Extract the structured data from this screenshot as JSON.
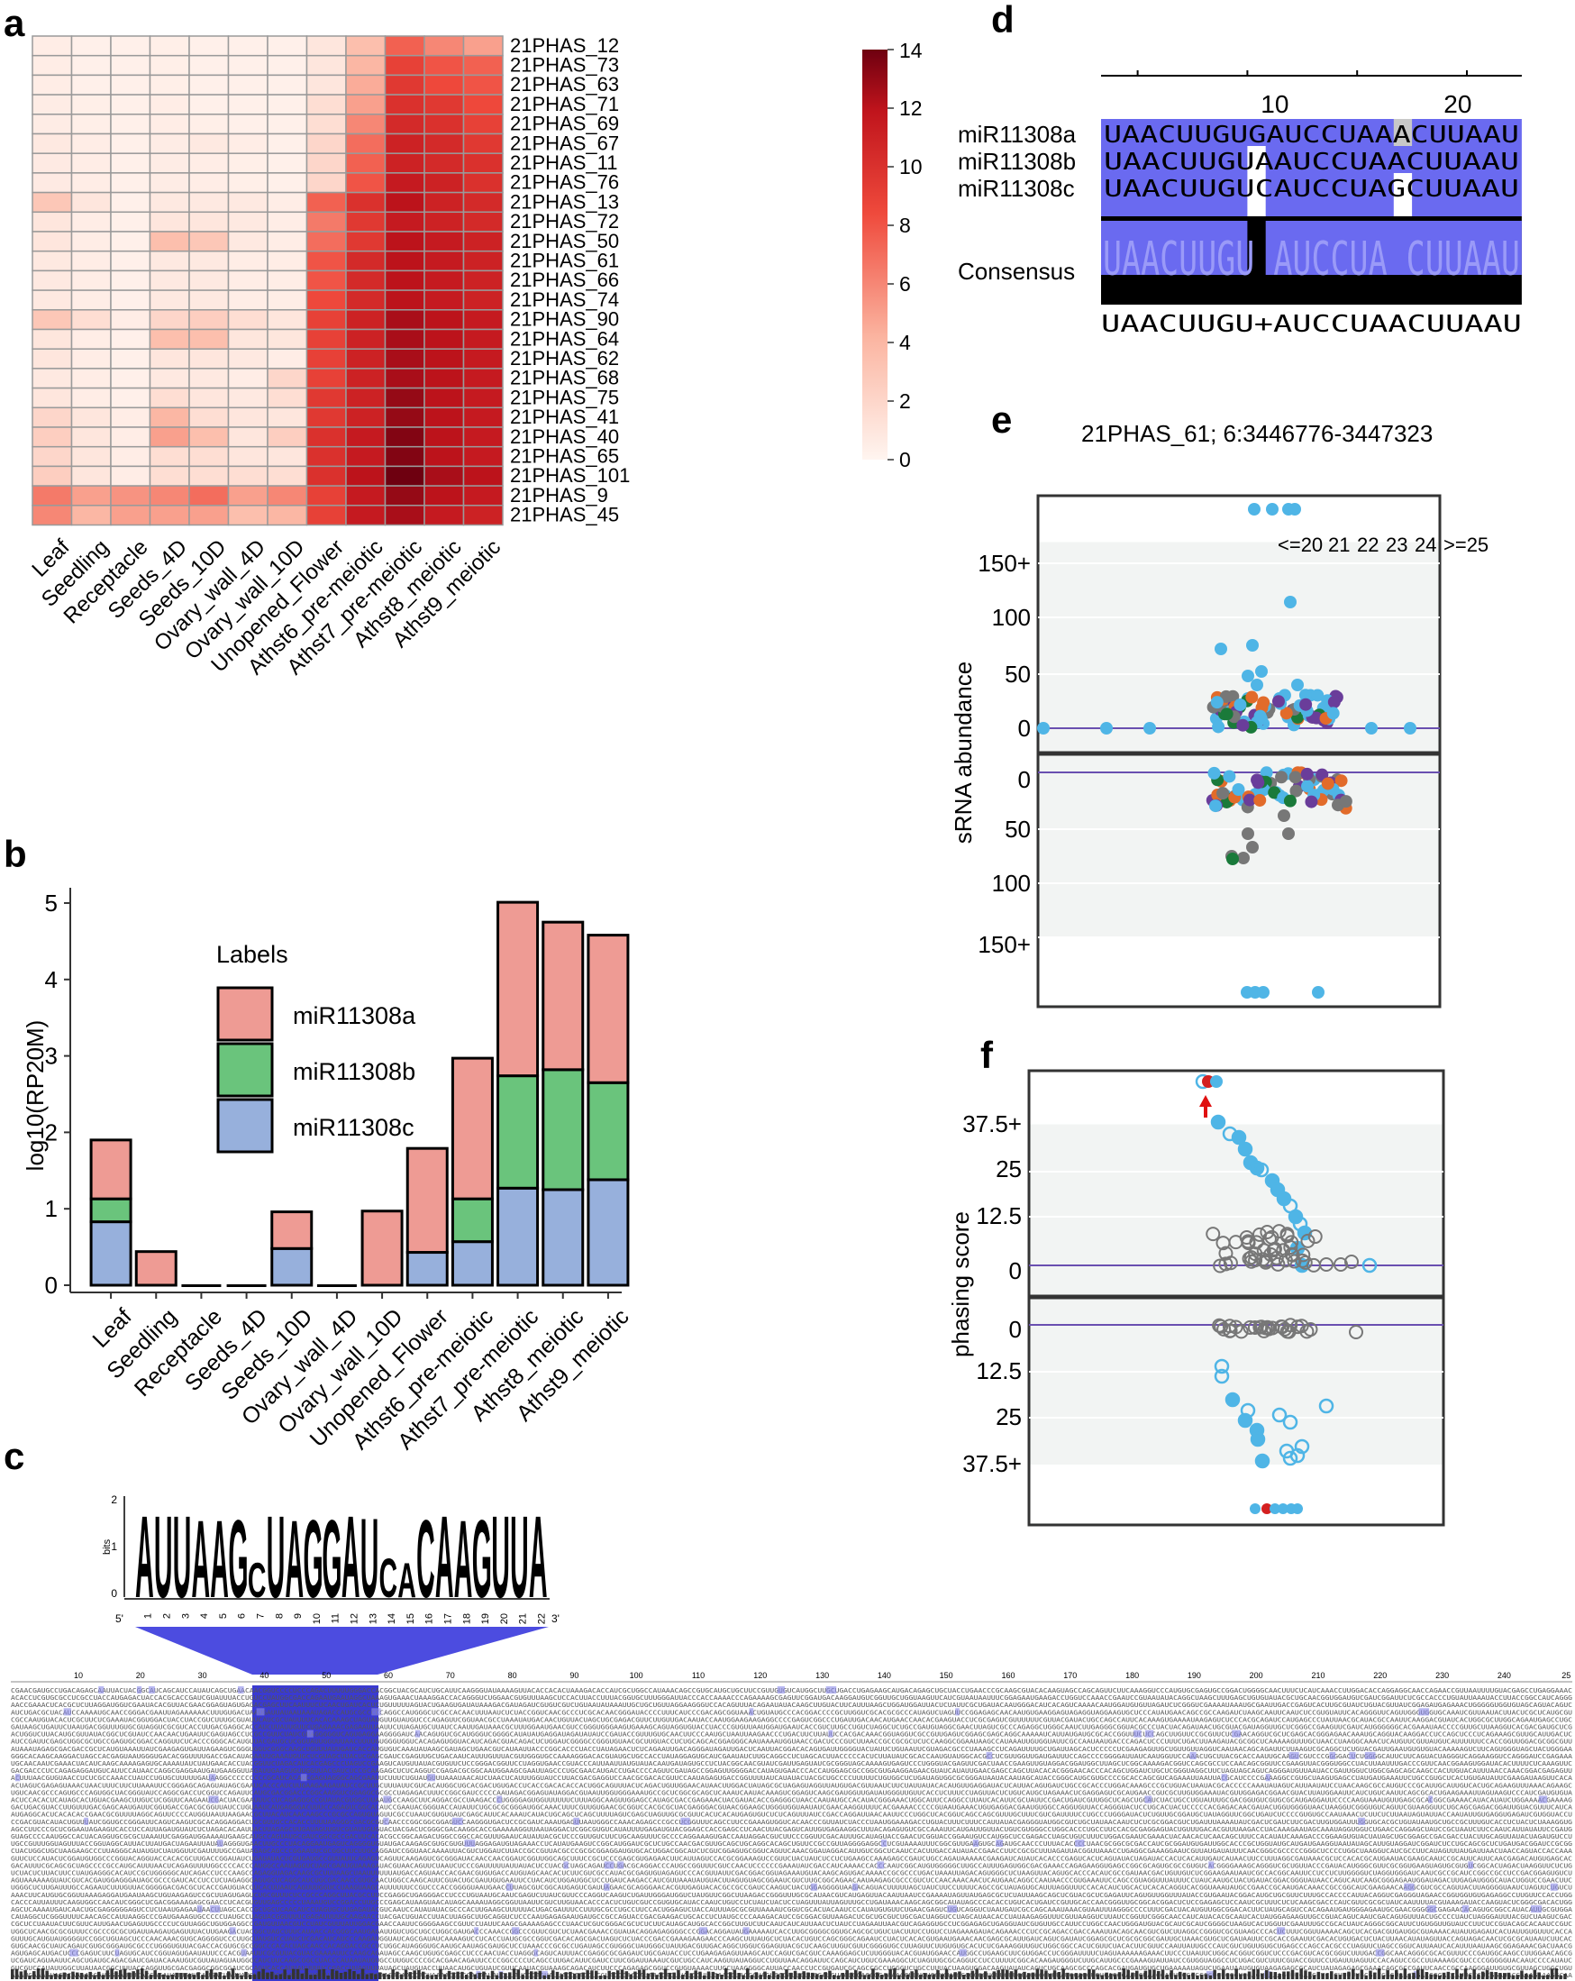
{
  "panels": {
    "a": {
      "letter": "a",
      "rows": [
        "21PHAS_12",
        "21PHAS_73",
        "21PHAS_63",
        "21PHAS_71",
        "21PHAS_69",
        "21PHAS_67",
        "21PHAS_11",
        "21PHAS_76",
        "21PHAS_13",
        "21PHAS_72",
        "21PHAS_50",
        "21PHAS_61",
        "21PHAS_66",
        "21PHAS_74",
        "21PHAS_90",
        "21PHAS_64",
        "21PHAS_62",
        "21PHAS_68",
        "21PHAS_75",
        "21PHAS_41",
        "21PHAS_40",
        "21PHAS_65",
        "21PHAS_101",
        "21PHAS_9",
        "21PHAS_45"
      ],
      "columns": [
        "Leaf",
        "Seedling",
        "Receptacle",
        "Seeds_4D",
        "Seeds_10D",
        "Ovary_wall_4D",
        "Ovary_wall_10D",
        "Unopened_Flower",
        "Athst6_pre-meiotic",
        "Athst7_pre-meiotic",
        "Athst8_meiotic",
        "Athst9_meiotic"
      ],
      "colorbar_ticks": [
        "14",
        "12",
        "10",
        "8",
        "6",
        "4",
        "2",
        "0"
      ]
    },
    "b": {
      "letter": "b",
      "legend_title": "Labels",
      "y_ticks": [
        "0",
        "1",
        "2",
        "3",
        "4",
        "5"
      ],
      "colors": {
        "miR11308a": "#ee9b94",
        "miR11308b": "#6ac47c",
        "miR11308c": "#97b0dc"
      }
    },
    "c": {
      "letter": "c",
      "logo_letters": [
        "A",
        "U",
        "U",
        "A",
        "A",
        "G",
        "C",
        "U",
        "A",
        "G",
        "G",
        "A",
        "U",
        "C",
        "A",
        "C",
        "A",
        "A",
        "G",
        "U",
        "U",
        "A"
      ],
      "logo_axis_label": "bits",
      "logo_positions": [
        "1",
        "2",
        "3",
        "4",
        "5",
        "6",
        "7",
        "8",
        "9",
        "10",
        "11",
        "12",
        "13",
        "14",
        "15",
        "16",
        "17",
        "18",
        "19",
        "20",
        "21",
        "22"
      ],
      "five_prime": "5'",
      "three_prime": "3'",
      "ruler": [
        "10",
        "20",
        "30",
        "40",
        "50",
        "60",
        "70",
        "80",
        "90",
        "100",
        "110",
        "120",
        "130",
        "140",
        "150",
        "160",
        "170",
        "180",
        "190",
        "200",
        "210",
        "220",
        "230",
        "240",
        "25"
      ]
    },
    "d": {
      "letter": "d",
      "ruler": [
        "10",
        "20"
      ],
      "rows": [
        {
          "name": "miR11308a",
          "seq": "UAACUUGUGAUCCUAAACUUAAU"
        },
        {
          "name": "miR11308b",
          "seq": "UAACUUGUAAUCCUAACUUAAU"
        },
        {
          "name": "miR11308c",
          "seq": "UAACUUGUCAUCCUAGCUUAAU"
        }
      ],
      "consensus_label": "Consensus",
      "consensus_logo": "UAACUUGU AUCCUA CUUAAU",
      "bottom_seq": "UAACUUGU+AUCCUAACUUAAU"
    },
    "e": {
      "letter": "e",
      "title": "21PHAS_61; 6:3446776-3447323",
      "legend": [
        {
          "text": "<=20",
          "color": "#333333"
        },
        {
          "text": "21",
          "color": "#4fb5e6"
        },
        {
          "text": "22",
          "color": "#1a7a3a"
        },
        {
          "text": "23",
          "color": "#6a3d9a"
        },
        {
          "text": "24",
          "color": "#e26b2a"
        },
        {
          "text": ">=25",
          "color": "#333333"
        }
      ],
      "y_label": "sRNA abundance",
      "top_ticks": [
        "150+",
        "100",
        "50",
        "0"
      ],
      "bottom_ticks": [
        "0",
        "50",
        "100",
        "150+"
      ]
    },
    "f": {
      "letter": "f",
      "y_label": "phasing score",
      "top_ticks": [
        "37.5+",
        "25",
        "12.5",
        "0"
      ],
      "bottom_ticks": [
        "0",
        "12.5",
        "25",
        "37.5+"
      ]
    }
  },
  "chart_data": [
    {
      "type": "heatmap",
      "panel": "a",
      "title": "",
      "colorbar_range": [
        0,
        14
      ],
      "rows": [
        "21PHAS_12",
        "21PHAS_73",
        "21PHAS_63",
        "21PHAS_71",
        "21PHAS_69",
        "21PHAS_67",
        "21PHAS_11",
        "21PHAS_76",
        "21PHAS_13",
        "21PHAS_72",
        "21PHAS_50",
        "21PHAS_61",
        "21PHAS_66",
        "21PHAS_74",
        "21PHAS_90",
        "21PHAS_64",
        "21PHAS_62",
        "21PHAS_68",
        "21PHAS_75",
        "21PHAS_41",
        "21PHAS_40",
        "21PHAS_65",
        "21PHAS_101",
        "21PHAS_9",
        "21PHAS_45"
      ],
      "columns": [
        "Leaf",
        "Seedling",
        "Receptacle",
        "Seeds_4D",
        "Seeds_10D",
        "Ovary_wall_4D",
        "Ovary_wall_10D",
        "Unopened_Flower",
        "Athst6_pre-meiotic",
        "Athst7_pre-meiotic",
        "Athst8_meiotic",
        "Athst9_meiotic"
      ],
      "values": [
        [
          0.5,
          0.3,
          0.3,
          0.4,
          0.3,
          0.3,
          0.3,
          1.0,
          3.5,
          7.5,
          6.0,
          5.0
        ],
        [
          0.5,
          0.3,
          0.3,
          0.4,
          0.3,
          0.3,
          0.3,
          1.0,
          4.0,
          9.0,
          8.0,
          7.5
        ],
        [
          0.5,
          0.3,
          0.3,
          0.4,
          0.3,
          0.3,
          0.3,
          1.0,
          4.5,
          9.5,
          8.5,
          8.0
        ],
        [
          0.6,
          0.4,
          0.3,
          0.5,
          0.3,
          0.3,
          0.3,
          1.5,
          5.0,
          10.0,
          9.5,
          8.5
        ],
        [
          0.6,
          0.4,
          0.3,
          0.5,
          0.4,
          0.3,
          0.3,
          1.5,
          6.0,
          10.5,
          10.0,
          9.0
        ],
        [
          0.8,
          0.5,
          0.3,
          0.6,
          0.8,
          0.5,
          0.3,
          2.0,
          7.0,
          11.0,
          10.5,
          9.5
        ],
        [
          0.7,
          0.5,
          0.3,
          0.6,
          0.5,
          0.4,
          0.3,
          2.0,
          7.5,
          11.0,
          10.5,
          10.0
        ],
        [
          0.7,
          0.5,
          0.3,
          0.6,
          0.5,
          0.4,
          0.3,
          2.0,
          8.0,
          11.5,
          11.0,
          10.0
        ],
        [
          3.0,
          1.0,
          0.3,
          0.8,
          0.8,
          0.8,
          0.5,
          7.5,
          10.0,
          12.0,
          11.0,
          10.5
        ],
        [
          1.0,
          0.5,
          0.3,
          1.0,
          1.0,
          0.8,
          0.5,
          6.5,
          9.5,
          11.5,
          11.0,
          10.5
        ],
        [
          1.0,
          0.5,
          0.3,
          3.5,
          3.0,
          0.8,
          0.5,
          7.0,
          9.5,
          12.0,
          11.5,
          11.0
        ],
        [
          0.8,
          0.5,
          0.3,
          0.8,
          0.8,
          0.5,
          0.5,
          8.0,
          10.5,
          12.0,
          11.5,
          11.0
        ],
        [
          0.8,
          0.5,
          0.3,
          0.8,
          0.8,
          0.5,
          0.5,
          8.0,
          10.5,
          12.0,
          11.5,
          11.0
        ],
        [
          0.8,
          0.5,
          0.3,
          0.8,
          0.8,
          0.5,
          0.5,
          8.5,
          10.5,
          12.0,
          11.5,
          11.0
        ],
        [
          3.0,
          1.5,
          0.5,
          2.0,
          2.5,
          1.5,
          1.0,
          9.0,
          11.0,
          12.5,
          12.0,
          11.5
        ],
        [
          1.0,
          0.5,
          0.3,
          3.5,
          3.5,
          1.0,
          1.0,
          9.0,
          11.0,
          12.5,
          12.0,
          11.5
        ],
        [
          1.0,
          0.5,
          0.3,
          1.0,
          1.0,
          0.8,
          0.5,
          9.0,
          11.0,
          12.5,
          12.0,
          11.5
        ],
        [
          0.8,
          0.5,
          0.3,
          0.8,
          0.8,
          0.5,
          2.0,
          9.0,
          11.0,
          12.5,
          12.0,
          11.5
        ],
        [
          1.0,
          0.5,
          0.3,
          1.5,
          1.0,
          0.8,
          1.5,
          9.5,
          11.0,
          13.0,
          12.0,
          11.5
        ],
        [
          2.0,
          1.0,
          0.5,
          4.0,
          1.5,
          1.0,
          1.0,
          9.5,
          11.0,
          13.0,
          12.0,
          11.5
        ],
        [
          2.5,
          1.0,
          0.5,
          5.0,
          3.5,
          1.0,
          2.5,
          10.0,
          11.5,
          13.5,
          12.0,
          11.5
        ],
        [
          2.0,
          1.0,
          0.5,
          1.5,
          1.5,
          1.0,
          1.0,
          10.0,
          11.5,
          13.5,
          12.0,
          11.5
        ],
        [
          2.5,
          1.0,
          0.5,
          1.5,
          1.5,
          1.5,
          1.5,
          10.0,
          12.0,
          14.0,
          12.5,
          12.0
        ],
        [
          6.5,
          5.0,
          5.5,
          6.0,
          7.0,
          5.0,
          6.0,
          9.0,
          11.5,
          13.0,
          12.0,
          11.5
        ],
        [
          6.0,
          4.0,
          5.0,
          5.0,
          5.0,
          3.5,
          4.0,
          9.0,
          11.5,
          12.5,
          11.5,
          11.0
        ]
      ]
    },
    {
      "type": "bar",
      "panel": "b",
      "stacked": true,
      "categories": [
        "Leaf",
        "Seedling",
        "Receptacle",
        "Seeds_4D",
        "Seeds_10D",
        "Ovary_wall_4D",
        "Ovary_wall_10D",
        "Unopened_Flower",
        "Athst6_pre-meiotic",
        "Athst7_pre-meiotic",
        "Athst8_meiotic",
        "Athst9_meiotic"
      ],
      "series": [
        {
          "name": "miR11308c",
          "values": [
            0.83,
            0,
            0,
            0,
            0.48,
            0,
            0,
            0.43,
            0.57,
            1.27,
            1.25,
            1.38
          ]
        },
        {
          "name": "miR11308b",
          "values": [
            0.3,
            0,
            0,
            0,
            0,
            0,
            0,
            0,
            0.56,
            1.47,
            1.57,
            1.27
          ]
        },
        {
          "name": "miR11308a",
          "values": [
            0.77,
            0.44,
            0,
            0,
            0.48,
            0,
            0.97,
            1.36,
            1.84,
            2.27,
            1.93,
            1.93
          ]
        }
      ],
      "xlabel": "",
      "ylabel": "log10(RP20M)",
      "ylim": [
        0,
        5.2
      ]
    },
    {
      "type": "scatter",
      "panel": "e",
      "title": "21PHAS_61; 6:3446776-3447323",
      "ylabel": "sRNA abundance",
      "ylim": [
        0,
        150
      ],
      "notes": "top: positive strand, bottom: negative strand; clusters near positions 200-210"
    },
    {
      "type": "scatter",
      "panel": "f",
      "ylabel": "phasing score",
      "ylim": [
        0,
        37.5
      ]
    }
  ]
}
